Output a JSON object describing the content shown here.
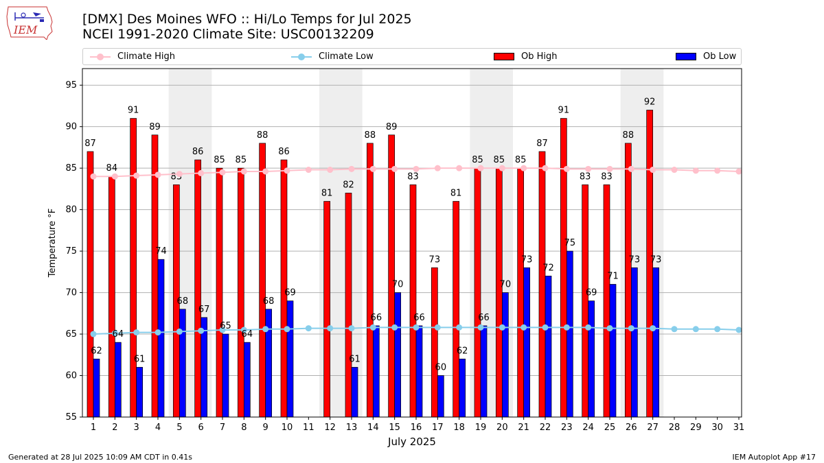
{
  "logo": {
    "text": "IEM"
  },
  "title": {
    "line1": "[DMX] Des Moines WFO :: Hi/Lo Temps for Jul 2025",
    "line2": "NCEI 1991-2020 Climate Site: USC00132209"
  },
  "legend": {
    "climate_high": "Climate High",
    "climate_low": "Climate Low",
    "ob_high": "Ob High",
    "ob_low": "Ob Low"
  },
  "colors": {
    "climate_high": "#ffc0cb",
    "climate_low": "#87ceeb",
    "ob_high": "#ff0000",
    "ob_low": "#0000ff",
    "weekend_band": "#eeeeee",
    "grid": "#b0b0b0"
  },
  "chart_data": {
    "type": "bar",
    "xlabel": "July 2025",
    "ylabel": "Temperature °F",
    "ylim": [
      55,
      97
    ],
    "yticks": [
      55,
      60,
      65,
      70,
      75,
      80,
      85,
      90,
      95
    ],
    "grid": "horizontal",
    "legend_position": "top",
    "categories": [
      1,
      2,
      3,
      4,
      5,
      6,
      7,
      8,
      9,
      10,
      11,
      12,
      13,
      14,
      15,
      16,
      17,
      18,
      19,
      20,
      21,
      22,
      23,
      24,
      25,
      26,
      27,
      28,
      29,
      30,
      31
    ],
    "weekend_days": [
      [
        5,
        6
      ],
      [
        12,
        13
      ],
      [
        19,
        20
      ],
      [
        26,
        27
      ]
    ],
    "series": [
      {
        "name": "Ob High",
        "kind": "bar",
        "values": [
          87,
          84,
          91,
          89,
          83,
          86,
          85,
          85,
          88,
          86,
          null,
          81,
          82,
          88,
          89,
          83,
          73,
          81,
          85,
          85,
          85,
          87,
          91,
          83,
          83,
          88,
          92,
          null,
          null,
          null,
          null
        ]
      },
      {
        "name": "Ob Low",
        "kind": "bar",
        "values": [
          62,
          64,
          61,
          74,
          68,
          67,
          65,
          64,
          68,
          69,
          null,
          null,
          61,
          66,
          70,
          66,
          60,
          62,
          66,
          70,
          73,
          72,
          75,
          69,
          71,
          73,
          73,
          null,
          null,
          null,
          null
        ]
      },
      {
        "name": "Climate High",
        "kind": "line",
        "values": [
          84,
          84,
          84.1,
          84.2,
          84.3,
          84.4,
          84.5,
          84.6,
          84.6,
          84.7,
          84.8,
          84.8,
          84.9,
          84.9,
          84.9,
          84.9,
          85,
          85,
          85,
          85,
          85,
          85,
          84.9,
          84.9,
          84.9,
          84.9,
          84.8,
          84.8,
          84.7,
          84.7,
          84.6
        ]
      },
      {
        "name": "Climate Low",
        "kind": "line",
        "values": [
          65,
          65.1,
          65.2,
          65.2,
          65.3,
          65.4,
          65.5,
          65.5,
          65.6,
          65.6,
          65.7,
          65.7,
          65.7,
          65.8,
          65.8,
          65.8,
          65.8,
          65.8,
          65.8,
          65.8,
          65.8,
          65.8,
          65.8,
          65.8,
          65.7,
          65.7,
          65.7,
          65.6,
          65.6,
          65.6,
          65.5
        ]
      }
    ]
  },
  "footer": {
    "generated": "Generated at 28 Jul 2025 10:09 AM CDT in 0.41s",
    "app": "IEM Autoplot App #17"
  }
}
